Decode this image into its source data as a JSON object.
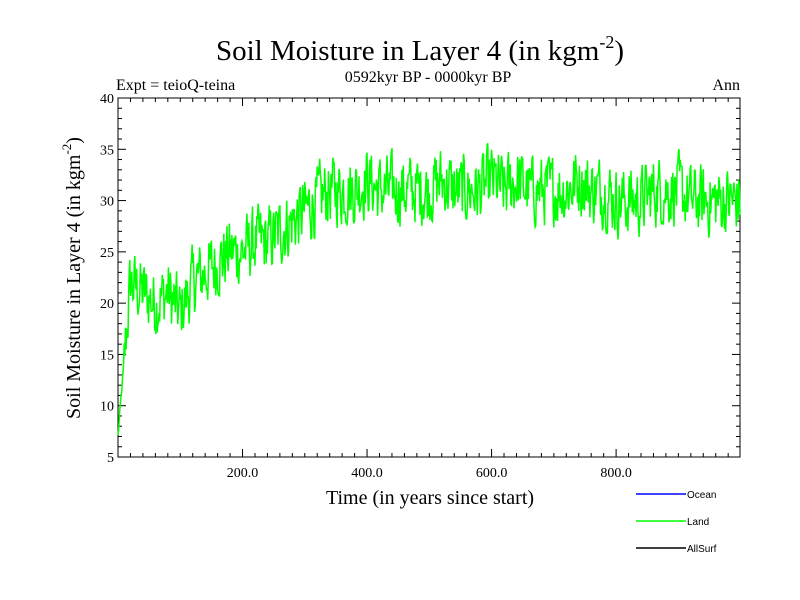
{
  "chart_data": {
    "type": "line",
    "title": "Soil Moisture in Layer 4 (in kgm",
    "title_superscript": "-2",
    "title_close": ")",
    "subtitle": "0592kyr BP - 0000kyr BP",
    "experiment_label": "Expt = teioQ-teina",
    "season_label": "Ann",
    "xlabel": "Time (in years since start)",
    "ylabel": "Soil Moisture in Layer 4 (in kgm",
    "ylabel_superscript": "-2",
    "ylabel_close": ")",
    "xlim": [
      0,
      999
    ],
    "ylim": [
      5,
      40
    ],
    "x_ticks": [
      {
        "value": 200,
        "label": "200.0"
      },
      {
        "value": 400,
        "label": "400.0"
      },
      {
        "value": 600,
        "label": "600.0"
      },
      {
        "value": 800,
        "label": "800.0"
      }
    ],
    "y_ticks": [
      {
        "value": 5,
        "label": "5"
      },
      {
        "value": 10,
        "label": "10"
      },
      {
        "value": 15,
        "label": "15"
      },
      {
        "value": 20,
        "label": "20"
      },
      {
        "value": 25,
        "label": "25"
      },
      {
        "value": 30,
        "label": "30"
      },
      {
        "value": 35,
        "label": "35"
      },
      {
        "value": 40,
        "label": "40"
      }
    ],
    "legend": [
      {
        "name": "Ocean",
        "color": "#0000ff"
      },
      {
        "name": "Land",
        "color": "#00ff00"
      },
      {
        "name": "AllSurf",
        "color": "#000000"
      }
    ],
    "series": [
      {
        "name": "Land",
        "color": "#00ff00",
        "x": [
          0,
          20,
          40,
          60,
          80,
          100,
          120,
          140,
          160,
          180,
          200,
          220,
          240,
          260,
          280,
          300,
          320,
          340,
          360,
          380,
          400,
          420,
          440,
          460,
          480,
          500,
          520,
          540,
          560,
          580,
          600,
          620,
          640,
          660,
          680,
          700,
          720,
          740,
          760,
          780,
          800,
          820,
          840,
          860,
          880,
          900,
          920,
          940,
          960,
          980,
          999
        ],
        "values": [
          7,
          22,
          21,
          20,
          21,
          19,
          22,
          23,
          24,
          25,
          25,
          26,
          26,
          27,
          28,
          29,
          30,
          31,
          31,
          31,
          32,
          31,
          31,
          31,
          31,
          31,
          32,
          31,
          31,
          31,
          32,
          31,
          32,
          31,
          31,
          31,
          31,
          32,
          31,
          31,
          30,
          30,
          30,
          31,
          31,
          31,
          30,
          30,
          30,
          30,
          30
        ]
      }
    ]
  }
}
